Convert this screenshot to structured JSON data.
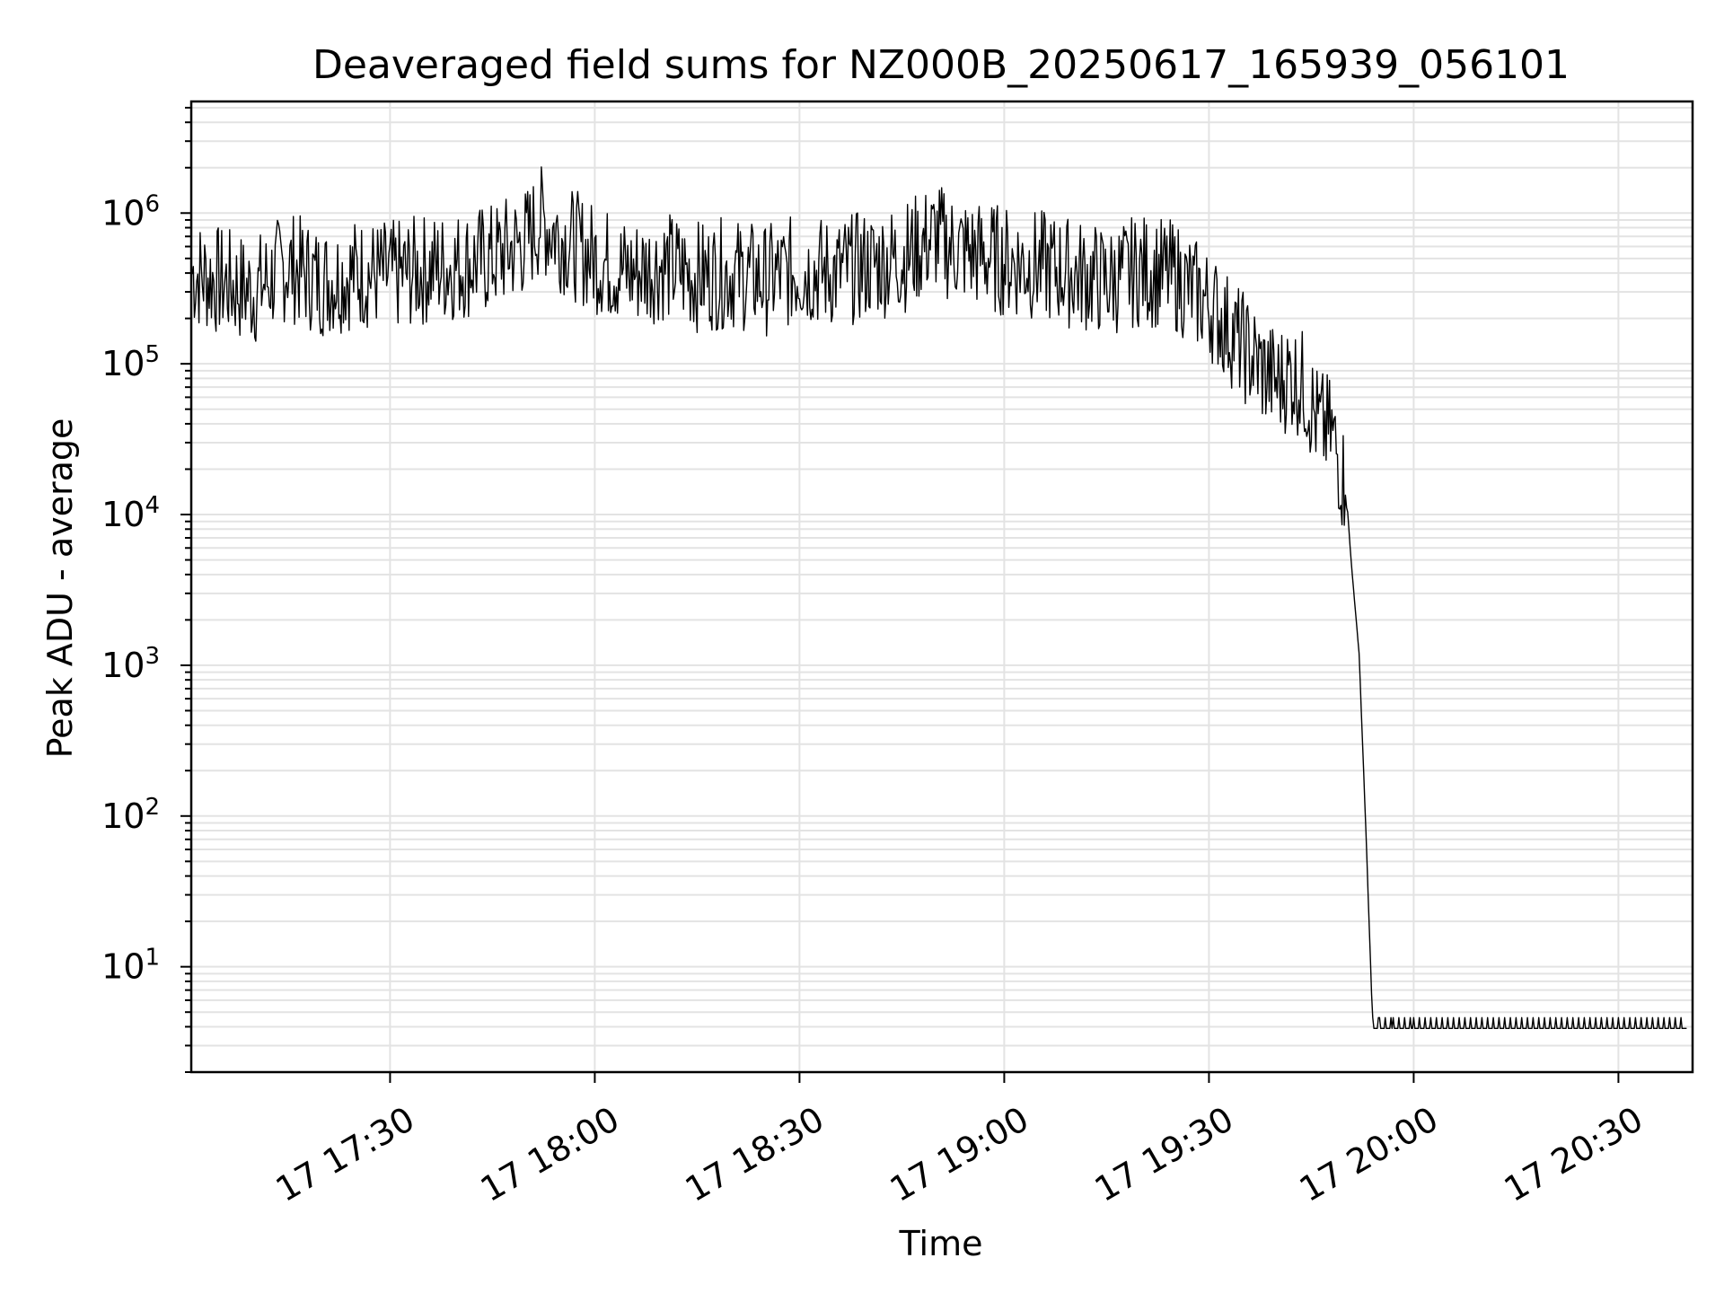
{
  "chart_data": {
    "type": "line",
    "title": "Deaveraged field sums for NZ000B_20250617_165939_056101",
    "xlabel": "Time",
    "ylabel": "Peak ADU - average",
    "yscale": "log",
    "grid": true,
    "xlim": [
      "17:00:52",
      "20:40:52"
    ],
    "ylim": [
      2,
      5500000
    ],
    "x_ticks": [
      {
        "value": "17:30",
        "label": "17 17:30"
      },
      {
        "value": "18:00",
        "label": "17 18:00"
      },
      {
        "value": "18:30",
        "label": "17 18:30"
      },
      {
        "value": "19:00",
        "label": "17 19:00"
      },
      {
        "value": "19:30",
        "label": "17 19:30"
      },
      {
        "value": "20:00",
        "label": "17 20:00"
      },
      {
        "value": "20:30",
        "label": "17 20:30"
      }
    ],
    "y_ticks": [
      {
        "value": 10,
        "base": "10",
        "exp": "1"
      },
      {
        "value": 100,
        "base": "10",
        "exp": "2"
      },
      {
        "value": 1000,
        "base": "10",
        "exp": "3"
      },
      {
        "value": 10000,
        "base": "10",
        "exp": "4"
      },
      {
        "value": 100000,
        "base": "10",
        "exp": "5"
      },
      {
        "value": 1000000,
        "base": "10",
        "exp": "6"
      }
    ],
    "series": [
      {
        "color": "#000000",
        "x": [
          "17:01",
          "17:10",
          "17:15",
          "17:20",
          "17:25",
          "17:30",
          "17:35",
          "17:40",
          "17:45",
          "17:50",
          "17:52",
          "17:55",
          "18:00",
          "18:05",
          "18:10",
          "18:15",
          "18:20",
          "18:25",
          "18:30",
          "18:35",
          "18:40",
          "18:45",
          "18:50",
          "18:52",
          "18:55",
          "19:00",
          "19:05",
          "19:10",
          "19:15",
          "19:20",
          "19:25",
          "19:30",
          "19:35",
          "19:38",
          "19:40",
          "19:42",
          "19:44",
          "19:46",
          "19:48",
          "19:50",
          "19:51",
          "19:52",
          "19:53",
          "19:54",
          "19:55",
          "19:57",
          "20:00",
          "20:10",
          "20:20",
          "20:30",
          "20:40"
        ],
        "y": [
          400000,
          300000,
          450000,
          350000,
          400000,
          380000,
          420000,
          450000,
          500000,
          650000,
          900000,
          700000,
          500000,
          400000,
          450000,
          380000,
          400000,
          360000,
          420000,
          400000,
          450000,
          500000,
          700000,
          600000,
          550000,
          480000,
          450000,
          400000,
          350000,
          420000,
          380000,
          250000,
          130000,
          90000,
          75000,
          85000,
          70000,
          40000,
          35000,
          15000,
          4000,
          1200,
          80,
          4,
          4,
          4,
          4,
          4,
          4,
          4,
          4
        ]
      }
    ]
  }
}
